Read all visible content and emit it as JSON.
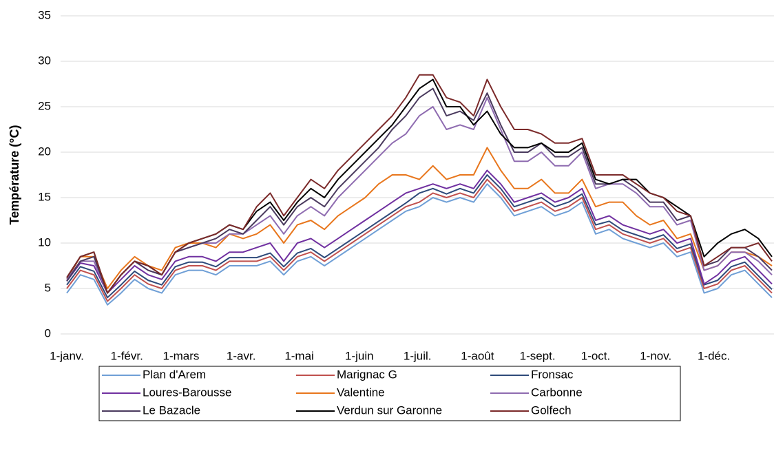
{
  "chart_data": {
    "type": "line",
    "y_label": "Température (°C)",
    "x": [
      1,
      8,
      15,
      22,
      29,
      36,
      43,
      50,
      57,
      64,
      71,
      78,
      85,
      92,
      99,
      106,
      113,
      120,
      127,
      134,
      141,
      148,
      155,
      162,
      169,
      176,
      183,
      190,
      197,
      204,
      211,
      218,
      225,
      232,
      239,
      246,
      253,
      260,
      267,
      274,
      281,
      288,
      295,
      302,
      309,
      316,
      323,
      330,
      337,
      344,
      351,
      358,
      365
    ],
    "xlim": [
      1,
      365
    ],
    "xticks": [
      {
        "value": 1,
        "label": "1-janv."
      },
      {
        "value": 32,
        "label": "1-févr."
      },
      {
        "value": 60,
        "label": "1-mars"
      },
      {
        "value": 91,
        "label": "1-avr."
      },
      {
        "value": 121,
        "label": "1-mai"
      },
      {
        "value": 152,
        "label": "1-juin"
      },
      {
        "value": 182,
        "label": "1-juil."
      },
      {
        "value": 213,
        "label": "1-août"
      },
      {
        "value": 244,
        "label": "1-sept."
      },
      {
        "value": 274,
        "label": "1-oct."
      },
      {
        "value": 305,
        "label": "1-nov."
      },
      {
        "value": 335,
        "label": "1-déc."
      }
    ],
    "ylim": [
      0,
      35
    ],
    "yticks": [
      0,
      5,
      10,
      15,
      20,
      25,
      30,
      35
    ],
    "grid": true,
    "legend": "bottom",
    "series": [
      {
        "name": "Plan d'Arem",
        "color": "#6f9fd6",
        "values": [
          4.5,
          6.5,
          6,
          3.2,
          4.5,
          6,
          5,
          4.5,
          6.5,
          7,
          7,
          6.5,
          7.5,
          7.5,
          7.5,
          8,
          6.5,
          8,
          8.5,
          7.5,
          8.5,
          9.5,
          10.5,
          11.5,
          12.5,
          13.5,
          14,
          15,
          14.5,
          15,
          14.5,
          16.5,
          15,
          13,
          13.5,
          14,
          13,
          13.5,
          14.5,
          11,
          11.5,
          10.5,
          10,
          9.5,
          10,
          8.5,
          9,
          4.5,
          5,
          6.5,
          7,
          5.5,
          4
        ]
      },
      {
        "name": "Marignac G",
        "color": "#c0504d",
        "values": [
          5,
          7,
          6.5,
          3.6,
          5,
          6.5,
          5.5,
          5,
          7,
          7.5,
          7.5,
          7,
          8,
          8,
          8,
          8.5,
          7,
          8.5,
          9,
          8,
          9,
          10,
          11,
          12,
          13,
          14,
          14.5,
          15.5,
          15,
          15.5,
          15,
          17,
          15.5,
          13.5,
          14,
          14.5,
          13.5,
          14,
          15,
          11.5,
          12,
          11,
          10.5,
          10,
          10.5,
          9,
          9.5,
          5,
          5.5,
          7,
          7.5,
          6,
          4.5
        ]
      },
      {
        "name": "Fronsac",
        "color": "#2e4a7a",
        "values": [
          5.4,
          7.4,
          6.9,
          4,
          5.4,
          6.9,
          5.9,
          5.4,
          7.4,
          7.9,
          7.9,
          7.4,
          8.4,
          8.4,
          8.4,
          8.9,
          7.4,
          8.9,
          9.4,
          8.4,
          9.4,
          10.4,
          11.4,
          12.4,
          13.4,
          14.4,
          15.5,
          16,
          15.4,
          16,
          15.5,
          17.5,
          16,
          14,
          14.5,
          15,
          14,
          14.5,
          15.4,
          12,
          12.4,
          11.4,
          10.9,
          10.4,
          10.9,
          9.4,
          9.9,
          5.4,
          5.9,
          7.4,
          7.9,
          6.4,
          4.9
        ]
      },
      {
        "name": "Loures-Barousse",
        "color": "#7030a0",
        "values": [
          5.8,
          7.8,
          7.5,
          4.5,
          6,
          7.5,
          6.5,
          6,
          8,
          8.5,
          8.5,
          8,
          9,
          9,
          9.5,
          10,
          8,
          10,
          10.5,
          9.5,
          10.5,
          11.5,
          12.5,
          13.5,
          14.5,
          15.5,
          16,
          16.5,
          16,
          16.5,
          16,
          18,
          16.5,
          14.5,
          15,
          15.5,
          14.5,
          15,
          16,
          12.5,
          13,
          12,
          11.5,
          11,
          11.5,
          10,
          10.5,
          5.5,
          6.5,
          8,
          8.5,
          7,
          5.5
        ]
      },
      {
        "name": "Valentine",
        "color": "#e8761c",
        "values": [
          6,
          8.5,
          8.5,
          5,
          7,
          8.5,
          7.5,
          7,
          9.5,
          10,
          10,
          9.5,
          11,
          10.5,
          11,
          12,
          10,
          12,
          12.5,
          11.5,
          13,
          14,
          15,
          16.5,
          17.5,
          17.5,
          17,
          18.5,
          17,
          17.5,
          17.5,
          20.5,
          18,
          16,
          16,
          17,
          15.5,
          15.5,
          17,
          14,
          14.5,
          14.5,
          13,
          12,
          12.5,
          10.5,
          11,
          7,
          7.5,
          9,
          9,
          8.5,
          7.5
        ]
      },
      {
        "name": "Carbonne",
        "color": "#8e6bb0",
        "values": [
          6,
          8,
          8,
          4.5,
          6.5,
          8,
          7,
          6.5,
          9,
          9.5,
          10,
          10,
          11,
          11,
          12,
          13,
          11,
          13,
          14,
          13,
          15,
          16.5,
          18,
          19.5,
          21,
          22,
          24,
          25,
          22.5,
          23,
          22.5,
          26,
          22.5,
          19,
          19,
          20,
          18.5,
          18.5,
          20,
          16,
          16.5,
          16.5,
          15.5,
          14,
          14,
          12,
          12.5,
          7,
          7.5,
          9,
          9,
          8,
          6.5
        ]
      },
      {
        "name": "Le Bazacle",
        "color": "#4a3a5e",
        "values": [
          5.8,
          8,
          8.5,
          4.5,
          6.5,
          8,
          7,
          6.5,
          9,
          9.5,
          10,
          10.5,
          11.5,
          11,
          12.5,
          14,
          12,
          14,
          15,
          14,
          16,
          17.5,
          19,
          20.5,
          22.5,
          24,
          26,
          27,
          24,
          24.5,
          23.5,
          26.5,
          23,
          20,
          20,
          21,
          19.5,
          19.5,
          20.5,
          16.5,
          16.5,
          17,
          16,
          14.5,
          14.5,
          12.5,
          13,
          7.5,
          8,
          9.5,
          9.5,
          8.5,
          7
        ]
      },
      {
        "name": "Verdun sur Garonne",
        "color": "#000000",
        "values": [
          6.2,
          8.5,
          9,
          4.5,
          6.5,
          8,
          7.5,
          6.5,
          9,
          10,
          10.5,
          11,
          12,
          11.5,
          13.5,
          14.5,
          12.5,
          14.5,
          16,
          15,
          17,
          18.5,
          20,
          21.5,
          23,
          25,
          27,
          28,
          25,
          25,
          23,
          24.5,
          22,
          20.5,
          20.5,
          21,
          20,
          20,
          21,
          17,
          16.5,
          17,
          17,
          15.5,
          15,
          14,
          13,
          8.5,
          10,
          11,
          11.5,
          10.5,
          8.5
        ]
      },
      {
        "name": "Golfech",
        "color": "#7b2a2a",
        "values": [
          6.2,
          8.5,
          9,
          4.5,
          6.5,
          8,
          7.5,
          6.5,
          9,
          10,
          10.5,
          11,
          12,
          11.5,
          14,
          15.5,
          13,
          15,
          17,
          16,
          18,
          19.5,
          21,
          22.5,
          24,
          26,
          28.5,
          28.5,
          26,
          25.5,
          24,
          28,
          25,
          22.5,
          22.5,
          22,
          21,
          21,
          21.5,
          17.5,
          17.5,
          17.5,
          16.5,
          15.5,
          15,
          13.5,
          13,
          7.5,
          8.5,
          9.5,
          9.5,
          10,
          8
        ]
      }
    ]
  }
}
